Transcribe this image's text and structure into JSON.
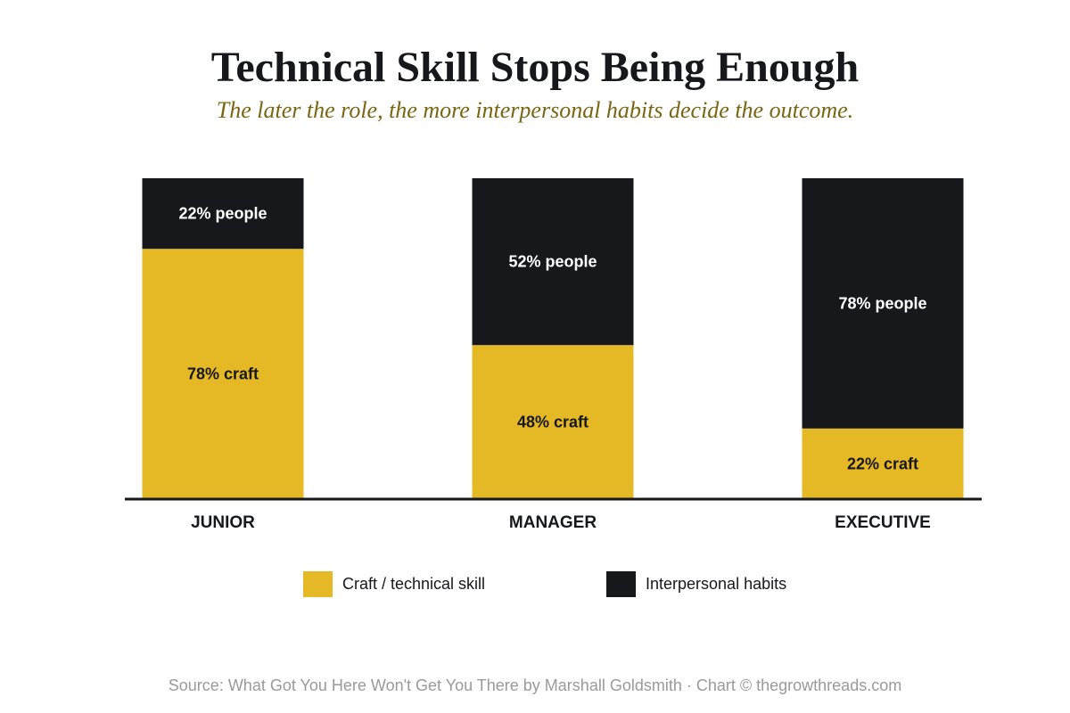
{
  "title": "Technical Skill Stops Being Enough",
  "subtitle": "The later the role, the more interpersonal habits decide the outcome.",
  "colors": {
    "craft": "#e5b825",
    "people": "#17181c",
    "baseline": "#17181c"
  },
  "chart_data": {
    "type": "bar",
    "stacked": true,
    "categories": [
      "JUNIOR",
      "MANAGER",
      "EXECUTIVE"
    ],
    "series": [
      {
        "name": "Craft / technical skill",
        "values": [
          78,
          48,
          22
        ],
        "labels": [
          "78% craft",
          "48% craft",
          "22% craft"
        ]
      },
      {
        "name": "Interpersonal habits",
        "values": [
          22,
          52,
          78
        ],
        "labels": [
          "22% people",
          "52% people",
          "78% people"
        ]
      }
    ],
    "ylim": [
      0,
      100
    ],
    "grid": false,
    "legend_position": "bottom"
  },
  "legend": {
    "craft_label": "Craft / technical skill",
    "people_label": "Interpersonal habits"
  },
  "source": "Source: What Got You Here Won't Get You There by Marshall Goldsmith · Chart © thegrowthreads.com"
}
